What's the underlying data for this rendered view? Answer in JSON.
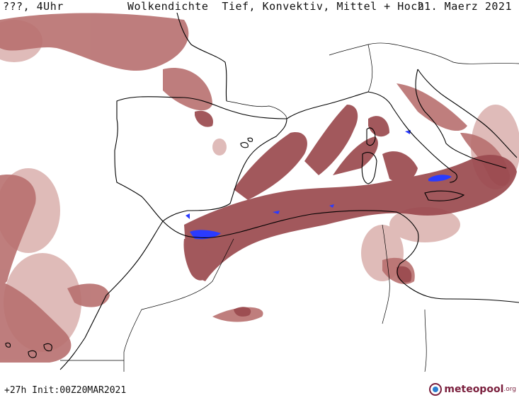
{
  "header": {
    "left_label": "???, 4Uhr",
    "title": "Wolkendichte  Tief, Konvektiv, Mittel + Hoch",
    "date": "21. Maerz 2021"
  },
  "footer": {
    "run_info": "+27h Init:00Z20MAR2021",
    "logo_text": "meteopool",
    "logo_suffix": ".org"
  },
  "colors": {
    "cloud_dense": "#9b4a4f",
    "cloud_medium": "#b8706f",
    "cloud_light": "#dcb4b1",
    "convective": "#2a3bff",
    "coast": "#000000"
  }
}
